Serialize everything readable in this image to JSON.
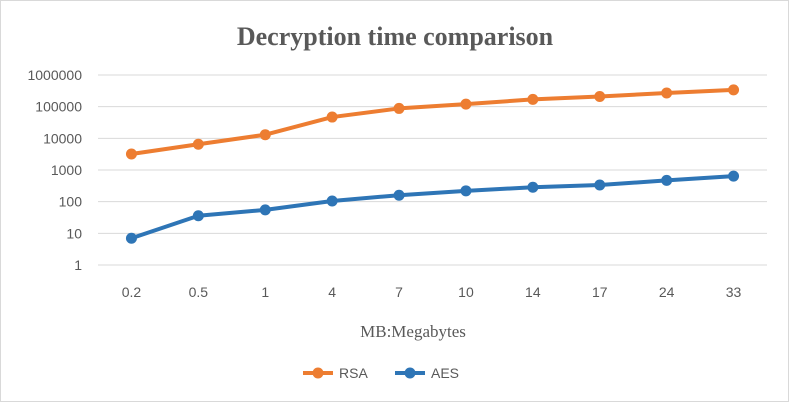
{
  "chart_data": {
    "type": "line",
    "title": "Decryption time comparison",
    "xlabel": "MB:Megabytes",
    "ylabel": "",
    "yscale": "log",
    "ylim": [
      1,
      1000000
    ],
    "yticks": [
      "1",
      "10",
      "100",
      "1000",
      "10000",
      "100000",
      "1000000"
    ],
    "categories": [
      "0.2",
      "0.5",
      "1",
      "4",
      "7",
      "10",
      "14",
      "17",
      "24",
      "33"
    ],
    "grid": "horizontal",
    "legend_position": "bottom",
    "series": [
      {
        "name": "RSA",
        "color": "#ed7d31",
        "values": [
          3200,
          6500,
          13000,
          47000,
          88000,
          120000,
          170000,
          210000,
          270000,
          340000
        ]
      },
      {
        "name": "AES",
        "color": "#2e75b6",
        "values": [
          7,
          36,
          55,
          105,
          160,
          220,
          285,
          335,
          470,
          640
        ]
      }
    ]
  }
}
